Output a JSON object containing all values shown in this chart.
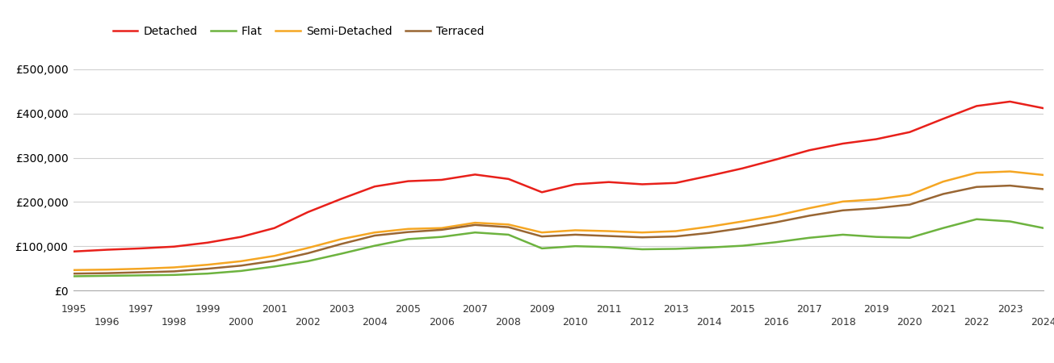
{
  "years": [
    1995,
    1996,
    1997,
    1998,
    1999,
    2000,
    2001,
    2002,
    2003,
    2004,
    2005,
    2006,
    2007,
    2008,
    2009,
    2010,
    2011,
    2012,
    2013,
    2014,
    2015,
    2016,
    2017,
    2018,
    2019,
    2020,
    2021,
    2022,
    2023,
    2024
  ],
  "detached": [
    88000,
    92000,
    95000,
    99000,
    108000,
    121000,
    141000,
    177000,
    207000,
    235000,
    247000,
    250000,
    262000,
    252000,
    222000,
    240000,
    245000,
    240000,
    243000,
    259000,
    276000,
    296000,
    317000,
    332000,
    342000,
    358000,
    388000,
    417000,
    427000,
    412000
  ],
  "flat": [
    32000,
    33000,
    34000,
    35000,
    38000,
    44000,
    54000,
    66000,
    83000,
    101000,
    116000,
    121000,
    131000,
    126000,
    95000,
    100000,
    98000,
    93000,
    94000,
    97000,
    101000,
    109000,
    119000,
    126000,
    121000,
    119000,
    141000,
    161000,
    156000,
    141000
  ],
  "semi_detached": [
    46000,
    47000,
    49000,
    52000,
    58000,
    66000,
    78000,
    96000,
    116000,
    131000,
    139000,
    141000,
    153000,
    149000,
    131000,
    136000,
    134000,
    131000,
    134000,
    144000,
    156000,
    169000,
    186000,
    201000,
    206000,
    216000,
    246000,
    266000,
    269000,
    261000
  ],
  "terraced": [
    38000,
    39000,
    41000,
    43000,
    49000,
    56000,
    67000,
    84000,
    105000,
    124000,
    132000,
    137000,
    148000,
    143000,
    122000,
    126000,
    123000,
    120000,
    122000,
    130000,
    141000,
    154000,
    169000,
    181000,
    186000,
    194000,
    218000,
    234000,
    237000,
    229000
  ],
  "line_colors": {
    "Detached": "#e8201a",
    "Flat": "#6db33f",
    "Semi-Detached": "#f5a623",
    "Terraced": "#996633"
  },
  "ylim": [
    0,
    550000
  ],
  "yticks": [
    0,
    100000,
    200000,
    300000,
    400000,
    500000
  ],
  "background_color": "#ffffff",
  "grid_color": "#d0d0d0",
  "line_width": 1.8
}
